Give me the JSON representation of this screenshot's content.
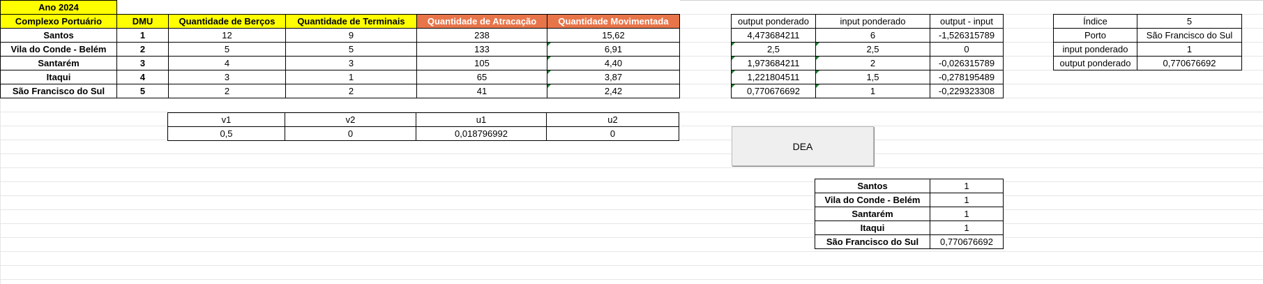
{
  "main_table": {
    "year_label": "Ano 2024",
    "headers": [
      "Complexo Portuário",
      "DMU",
      "Quantidade de Berços",
      "Quantidade de Terminais",
      "Quantidade de Atracação",
      "Quantidade Movimentada"
    ],
    "rows": [
      [
        "Santos",
        "1",
        "12",
        "9",
        "238",
        "15,62"
      ],
      [
        "Vila do Conde - Belém",
        "2",
        "5",
        "5",
        "133",
        "6,91"
      ],
      [
        "Santarém",
        "3",
        "4",
        "3",
        "105",
        "4,40"
      ],
      [
        "Itaqui",
        "4",
        "3",
        "1",
        "65",
        "3,87"
      ],
      [
        "São Francisco do Sul",
        "5",
        "2",
        "2",
        "41",
        "2,42"
      ]
    ]
  },
  "weights_table": {
    "headers": [
      "v1",
      "v2",
      "u1",
      "u2"
    ],
    "values": [
      "0,5",
      "0",
      "0,018796992",
      "0"
    ]
  },
  "weighted_table": {
    "headers": [
      "output ponderado",
      "input ponderado",
      "output - input"
    ],
    "rows": [
      [
        "4,473684211",
        "6",
        "-1,526315789"
      ],
      [
        "2,5",
        "2,5",
        "0"
      ],
      [
        "1,973684211",
        "2",
        "-0,026315789"
      ],
      [
        "1,221804511",
        "1,5",
        "-0,278195489"
      ],
      [
        "0,770676692",
        "1",
        "-0,229323308"
      ]
    ]
  },
  "index_table": {
    "rows": [
      [
        "Índice",
        "5"
      ],
      [
        "Porto",
        "São Francisco do Sul"
      ],
      [
        "input ponderado",
        "1"
      ],
      [
        "output ponderado",
        "0,770676692"
      ]
    ]
  },
  "dea_button": {
    "label": "DEA"
  },
  "results_table": {
    "rows": [
      [
        "Santos",
        "1"
      ],
      [
        "Vila do Conde - Belém",
        "1"
      ],
      [
        "Santarém",
        "1"
      ],
      [
        "Itaqui",
        "1"
      ],
      [
        "São Francisco do Sul",
        "0,770676692"
      ]
    ]
  },
  "colors": {
    "header_yellow": "#ffff00",
    "header_orange": "#e8754a",
    "cell_marker_green": "#1e7e34"
  }
}
